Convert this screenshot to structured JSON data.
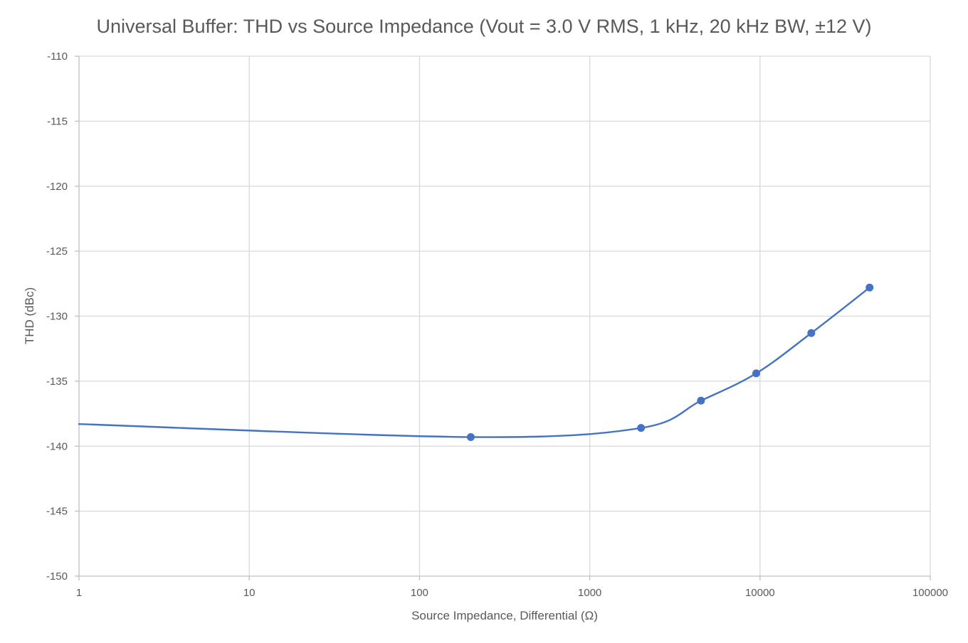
{
  "chart_data": {
    "type": "scatter",
    "title": "Universal Buffer: THD vs Source Impedance (Vout = 3.0 V RMS, 1 kHz, 20 kHz BW, ±12 V)",
    "xlabel": "Source Impedance, Differential (Ω)",
    "ylabel": "THD (dBc)",
    "x_scale": "log",
    "xlim": [
      1,
      100000
    ],
    "ylim": [
      -150,
      -110
    ],
    "x_ticks": [
      1,
      10,
      100,
      1000,
      10000,
      100000
    ],
    "x_tick_labels": [
      "1",
      "10",
      "100",
      "1000",
      "10000",
      "100000"
    ],
    "y_ticks": [
      -150,
      -145,
      -140,
      -135,
      -130,
      -125,
      -120,
      -115,
      -110
    ],
    "y_tick_labels": [
      "-150",
      "-145",
      "-140",
      "-135",
      "-130",
      "-125",
      "-120",
      "-115",
      "-110"
    ],
    "grid": true,
    "legend": "none",
    "series": [
      {
        "color": "#4472c4",
        "line": "smooth",
        "markers": true,
        "x": [
          1,
          200,
          2000,
          4500,
          9500,
          20000,
          44000
        ],
        "y": [
          -138.3,
          -139.3,
          -138.6,
          -136.5,
          -134.4,
          -131.3,
          -127.8
        ],
        "marker_shown": [
          false,
          true,
          true,
          true,
          true,
          true,
          true
        ]
      }
    ]
  }
}
